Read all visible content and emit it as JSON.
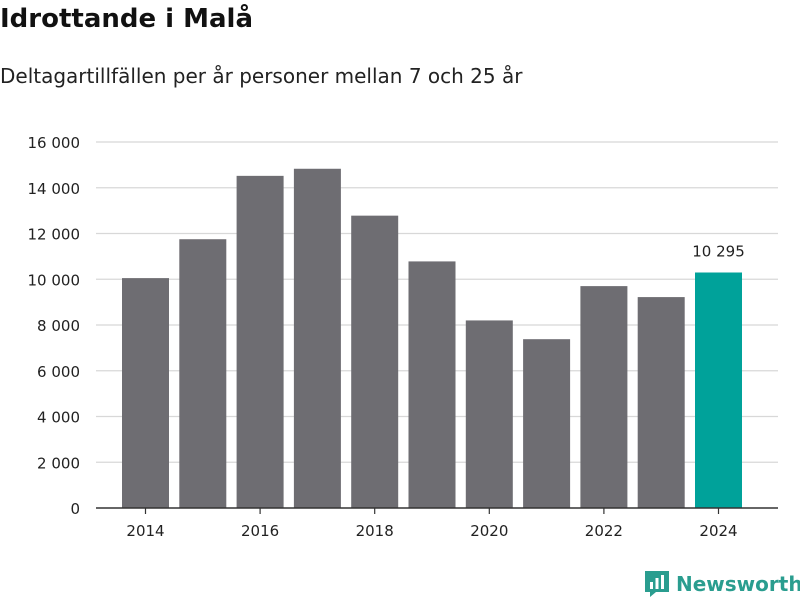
{
  "header": {
    "title": "Idrottande i Malå",
    "subtitle": "Deltagartillfällen per år personer mellan 7 och 25 år"
  },
  "brand": {
    "name": "Newsworthy",
    "color": "#2a9d8f"
  },
  "colors": {
    "bar": "#6e6d72",
    "highlight": "#00a29a",
    "grid": "#d8d8d8",
    "axis": "#333333"
  },
  "chart_data": {
    "type": "bar",
    "title": "Idrottande i Malå",
    "subtitle": "Deltagartillfällen per år personer mellan 7 och 25 år",
    "categories": [
      "2014",
      "2015",
      "2016",
      "2017",
      "2018",
      "2019",
      "2020",
      "2021",
      "2022",
      "2023",
      "2024"
    ],
    "values": [
      10050,
      11750,
      14520,
      14830,
      12780,
      10780,
      8200,
      7380,
      9700,
      9220,
      10295
    ],
    "highlight_index": 10,
    "highlight_label": "10 295",
    "x_tick_labels": [
      "2014",
      "2016",
      "2018",
      "2020",
      "2022",
      "2024"
    ],
    "y_ticks": [
      0,
      2000,
      4000,
      6000,
      8000,
      10000,
      12000,
      14000,
      16000
    ],
    "y_tick_labels": [
      "0",
      "2 000",
      "4 000",
      "6 000",
      "8 000",
      "10 000",
      "12 000",
      "14 000",
      "16 000"
    ],
    "ylim": [
      0,
      16000
    ],
    "xlabel": "",
    "ylabel": "",
    "grid": true
  }
}
